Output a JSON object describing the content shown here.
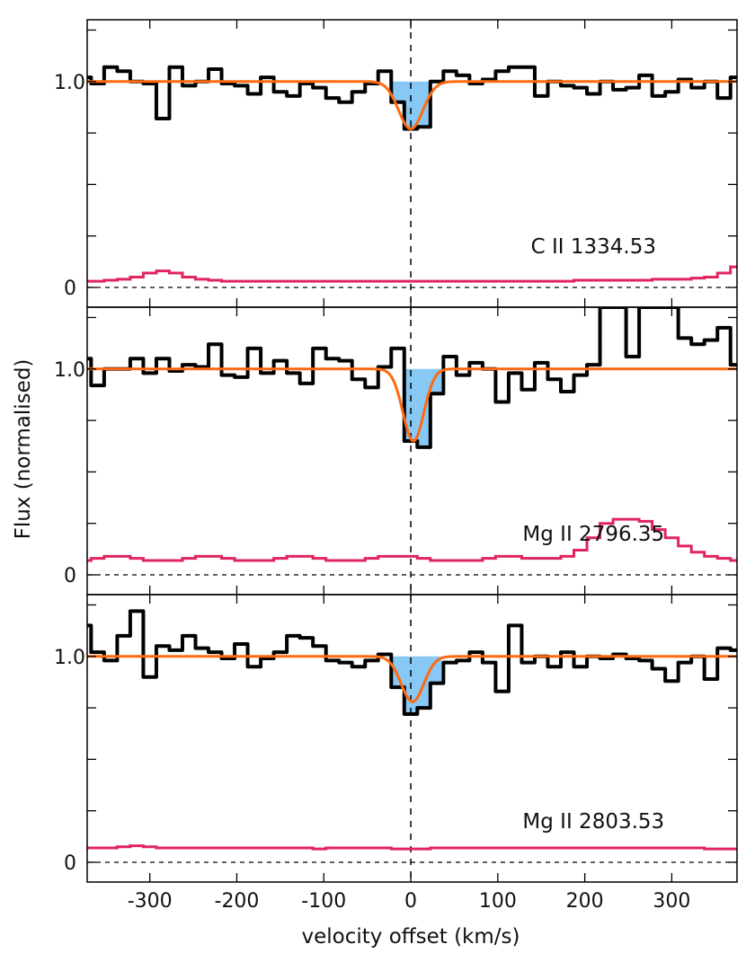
{
  "chart_data": {
    "type": "line",
    "xlabel": "velocity offset (km/s)",
    "ylabel": "Flux (normalised)",
    "xlim": [
      -372,
      375
    ],
    "xticks": [
      -300,
      -200,
      -100,
      0,
      100,
      200,
      300
    ],
    "xtick_labels": [
      "-300",
      "-200",
      "-100",
      "0",
      "100",
      "200",
      "300"
    ],
    "ytick_labels": [
      "0",
      "1.0"
    ],
    "colors": {
      "flux": "#000000",
      "model": "#ff6a10",
      "error": "#e0245e",
      "fill": "#87c8f5",
      "guide": "#000000"
    },
    "panels": [
      {
        "label": "C II 1334.53",
        "ylim": [
          -0.096,
          1.3
        ],
        "velocity": [
          -375,
          -360,
          -345,
          -330,
          -315,
          -300,
          -285,
          -270,
          -255,
          -240,
          -225,
          -210,
          -195,
          -180,
          -165,
          -150,
          -135,
          -120,
          -105,
          -90,
          -75,
          -60,
          -45,
          -30,
          -15,
          0,
          15,
          30,
          45,
          60,
          75,
          90,
          105,
          120,
          135,
          150,
          165,
          180,
          195,
          210,
          225,
          240,
          255,
          270,
          285,
          300,
          315,
          330,
          345,
          360,
          375
        ],
        "flux": [
          1.02,
          0.99,
          1.07,
          1.05,
          1.0,
          0.99,
          0.82,
          1.07,
          0.98,
          1.0,
          1.06,
          0.99,
          0.98,
          0.94,
          1.02,
          0.95,
          0.93,
          0.99,
          0.97,
          0.92,
          0.9,
          0.95,
          0.99,
          1.05,
          0.9,
          0.77,
          0.78,
          1.0,
          1.05,
          1.03,
          0.99,
          1.01,
          1.05,
          1.07,
          1.07,
          0.93,
          1.0,
          0.98,
          0.97,
          0.94,
          1.0,
          0.96,
          0.97,
          1.03,
          0.93,
          0.95,
          1.01,
          0.97,
          1.0,
          0.92,
          1.02
        ],
        "error": [
          0.03,
          0.03,
          0.035,
          0.04,
          0.05,
          0.07,
          0.08,
          0.07,
          0.05,
          0.04,
          0.035,
          0.03,
          0.03,
          0.03,
          0.03,
          0.03,
          0.03,
          0.03,
          0.03,
          0.03,
          0.03,
          0.03,
          0.03,
          0.03,
          0.03,
          0.03,
          0.03,
          0.03,
          0.03,
          0.03,
          0.03,
          0.03,
          0.03,
          0.03,
          0.03,
          0.03,
          0.03,
          0.03,
          0.035,
          0.035,
          0.035,
          0.035,
          0.035,
          0.035,
          0.04,
          0.04,
          0.04,
          0.045,
          0.05,
          0.07,
          0.1
        ],
        "model": {
          "center": 0,
          "depth": 0.23,
          "sigma": 14
        }
      },
      {
        "label": "Mg II 2796.35",
        "ylim": [
          -0.096,
          1.3
        ],
        "velocity": [
          -375,
          -360,
          -345,
          -330,
          -315,
          -300,
          -285,
          -270,
          -255,
          -240,
          -225,
          -210,
          -195,
          -180,
          -165,
          -150,
          -135,
          -120,
          -105,
          -90,
          -75,
          -60,
          -45,
          -30,
          -15,
          0,
          15,
          30,
          45,
          60,
          75,
          90,
          105,
          120,
          135,
          150,
          165,
          180,
          195,
          210,
          225,
          240,
          255,
          270,
          285,
          300,
          315,
          330,
          345,
          360,
          375
        ],
        "flux": [
          1.05,
          0.92,
          1.0,
          1.0,
          1.05,
          0.98,
          1.05,
          0.99,
          1.02,
          1.01,
          1.12,
          0.97,
          0.96,
          1.1,
          0.98,
          1.04,
          0.98,
          0.93,
          1.1,
          1.05,
          1.04,
          0.95,
          0.91,
          1.01,
          1.1,
          0.65,
          0.62,
          0.88,
          1.06,
          0.97,
          1.03,
          1.0,
          0.84,
          0.98,
          0.9,
          1.03,
          0.95,
          0.89,
          0.97,
          1.02,
          1.3,
          1.3,
          1.06,
          1.3,
          1.3,
          1.3,
          1.15,
          1.12,
          1.14,
          1.2,
          1.02
        ],
        "error": [
          0.07,
          0.08,
          0.09,
          0.09,
          0.08,
          0.07,
          0.07,
          0.07,
          0.08,
          0.09,
          0.09,
          0.08,
          0.07,
          0.07,
          0.07,
          0.08,
          0.09,
          0.09,
          0.08,
          0.07,
          0.07,
          0.07,
          0.08,
          0.09,
          0.09,
          0.09,
          0.08,
          0.07,
          0.07,
          0.07,
          0.07,
          0.08,
          0.09,
          0.09,
          0.08,
          0.08,
          0.08,
          0.09,
          0.12,
          0.18,
          0.25,
          0.27,
          0.27,
          0.26,
          0.22,
          0.18,
          0.14,
          0.11,
          0.09,
          0.08,
          0.07
        ],
        "model": {
          "center": 3,
          "depth": 0.35,
          "sigma": 12
        }
      },
      {
        "label": "Mg II 2803.53",
        "ylim": [
          -0.096,
          1.3
        ],
        "velocity": [
          -375,
          -360,
          -345,
          -330,
          -315,
          -300,
          -285,
          -270,
          -255,
          -240,
          -225,
          -210,
          -195,
          -180,
          -165,
          -150,
          -135,
          -120,
          -105,
          -90,
          -75,
          -60,
          -45,
          -30,
          -15,
          0,
          15,
          30,
          45,
          60,
          75,
          90,
          105,
          120,
          135,
          150,
          165,
          180,
          195,
          210,
          225,
          240,
          255,
          270,
          285,
          300,
          315,
          330,
          345,
          360,
          375
        ],
        "flux": [
          1.15,
          1.02,
          0.98,
          1.1,
          1.22,
          0.9,
          1.05,
          1.03,
          1.1,
          1.04,
          1.02,
          0.99,
          1.06,
          0.95,
          0.99,
          1.02,
          1.1,
          1.09,
          1.05,
          0.98,
          0.97,
          0.95,
          0.98,
          1.01,
          0.85,
          0.72,
          0.75,
          0.87,
          0.97,
          0.98,
          1.02,
          0.97,
          0.83,
          1.15,
          0.97,
          1.0,
          0.95,
          1.02,
          0.95,
          1.0,
          0.99,
          1.01,
          0.99,
          0.98,
          0.94,
          0.88,
          0.97,
          1.0,
          0.89,
          1.04,
          1.03
        ],
        "error": [
          0.07,
          0.07,
          0.07,
          0.075,
          0.08,
          0.075,
          0.07,
          0.07,
          0.07,
          0.07,
          0.07,
          0.07,
          0.07,
          0.07,
          0.07,
          0.07,
          0.07,
          0.07,
          0.065,
          0.07,
          0.07,
          0.07,
          0.07,
          0.07,
          0.065,
          0.065,
          0.065,
          0.07,
          0.07,
          0.07,
          0.07,
          0.07,
          0.07,
          0.07,
          0.07,
          0.07,
          0.07,
          0.07,
          0.07,
          0.07,
          0.07,
          0.07,
          0.07,
          0.07,
          0.07,
          0.07,
          0.07,
          0.07,
          0.065,
          0.065,
          0.065
        ],
        "model": {
          "center": 2,
          "depth": 0.22,
          "sigma": 13
        }
      }
    ]
  }
}
